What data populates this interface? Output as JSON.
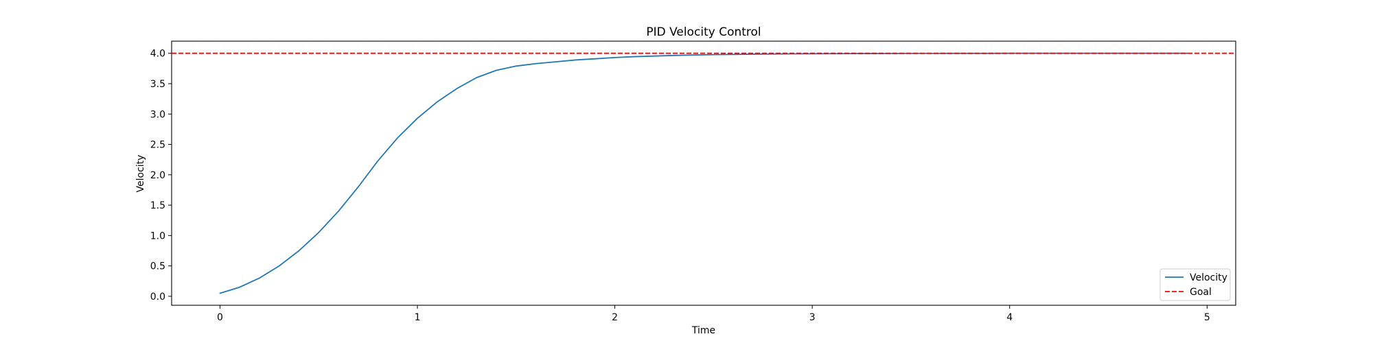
{
  "chart_data": {
    "type": "line",
    "title": "PID Velocity Control",
    "xlabel": "Time",
    "ylabel": "Velocity",
    "xlim": [
      -0.245,
      5.145
    ],
    "ylim": [
      -0.148,
      4.2
    ],
    "xticks": [
      0,
      1,
      2,
      3,
      4,
      5
    ],
    "yticks": [
      0.0,
      0.5,
      1.0,
      1.5,
      2.0,
      2.5,
      3.0,
      3.5,
      4.0
    ],
    "ytick_labels": [
      "0.0",
      "0.5",
      "1.0",
      "1.5",
      "2.0",
      "2.5",
      "3.0",
      "3.5",
      "4.0"
    ],
    "xtick_labels": [
      "0",
      "1",
      "2",
      "3",
      "4",
      "5"
    ],
    "grid": false,
    "legend_position": "bottom-right",
    "series": [
      {
        "name": "Velocity",
        "color": "#1f77b4",
        "style": "solid",
        "x": [
          0.0,
          0.1,
          0.2,
          0.3,
          0.4,
          0.5,
          0.6,
          0.7,
          0.8,
          0.9,
          1.0,
          1.1,
          1.2,
          1.3,
          1.4,
          1.5,
          1.6,
          1.7,
          1.8,
          1.9,
          2.0,
          2.1,
          2.2,
          2.3,
          2.4,
          2.5,
          2.6,
          2.7,
          2.8,
          2.9,
          3.0,
          3.1,
          3.2,
          3.3,
          3.4,
          3.5,
          3.6,
          3.7,
          3.8,
          3.9,
          4.0,
          4.1,
          4.2,
          4.3,
          4.4,
          4.5,
          4.6,
          4.7,
          4.8,
          4.9
        ],
        "y": [
          0.05,
          0.15,
          0.3,
          0.5,
          0.75,
          1.05,
          1.4,
          1.8,
          2.23,
          2.61,
          2.93,
          3.2,
          3.42,
          3.6,
          3.72,
          3.79,
          3.83,
          3.86,
          3.89,
          3.91,
          3.93,
          3.945,
          3.955,
          3.965,
          3.972,
          3.978,
          3.982,
          3.986,
          3.989,
          3.991,
          3.993,
          3.994,
          3.995,
          3.996,
          3.997,
          3.998,
          3.998,
          3.999,
          3.999,
          3.999,
          4.0,
          4.0,
          4.0,
          4.0,
          4.0,
          4.0,
          4.0,
          4.0,
          4.0,
          4.0
        ]
      },
      {
        "name": "Goal",
        "color": "#ff0000",
        "style": "dashed",
        "y_constant": 4.0
      }
    ]
  }
}
